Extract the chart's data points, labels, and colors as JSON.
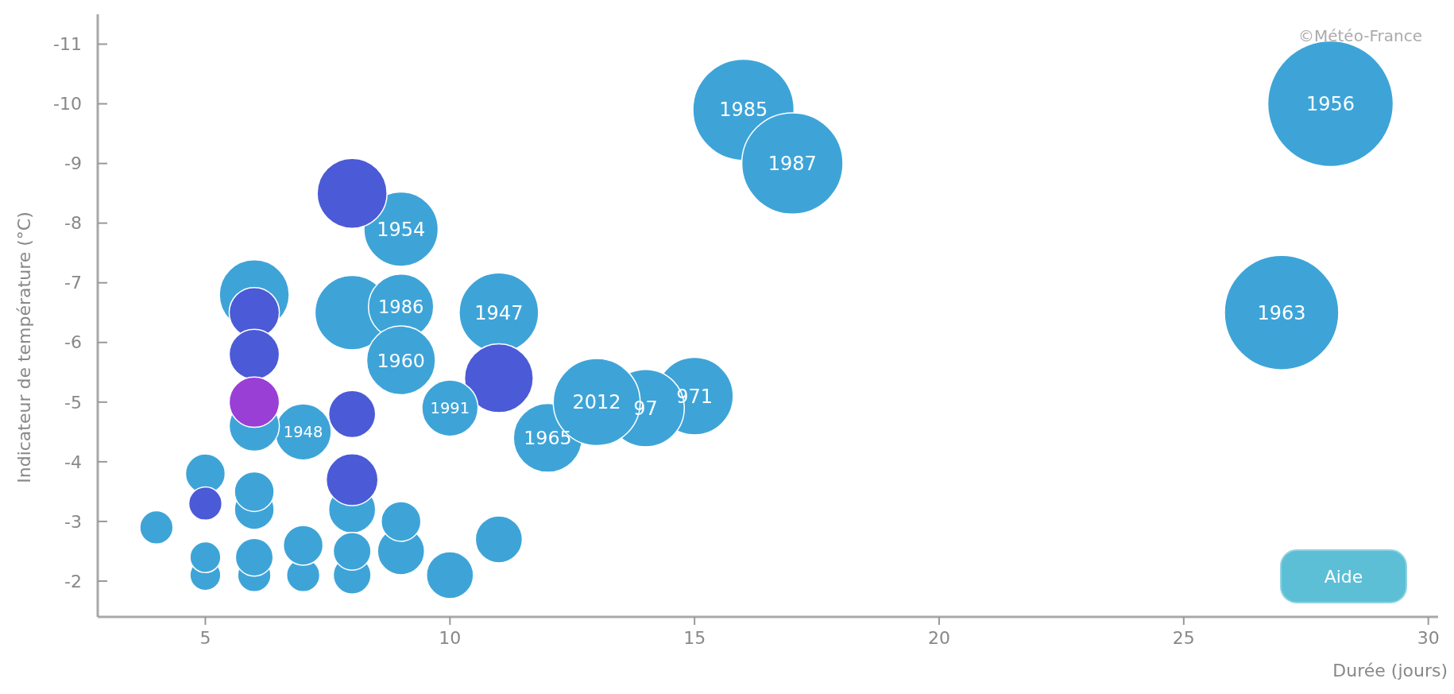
{
  "chart_data": {
    "type": "bubble",
    "xlabel": "Durée (jours)",
    "ylabel": "Indicateur de température (°C)",
    "xlim": [
      2.8,
      30.2
    ],
    "ylim": [
      -1.4,
      -11.5
    ],
    "xticks": [
      5,
      10,
      15,
      20,
      25,
      30
    ],
    "yticks": [
      -11,
      -10,
      -9,
      -8,
      -7,
      -6,
      -5,
      -4,
      -3,
      -2
    ],
    "grid": false,
    "annotations": [
      "©Météo-France",
      "Aide"
    ],
    "series": [
      {
        "name": "1956",
        "color": "#3ea4d8",
        "x": [
          28
        ],
        "values": [
          -10
        ],
        "sizes": [
          1
        ]
      },
      {
        "name": "1985",
        "color": "#3ea4d8",
        "x": [
          16
        ],
        "values": [
          -9.9
        ],
        "sizes": [
          0.65
        ]
      },
      {
        "name": "1987",
        "color": "#3ea4d8",
        "x": [
          17
        ],
        "values": [
          -9
        ],
        "sizes": [
          0.65
        ]
      },
      {
        "name": "1963",
        "color": "#3ea4d8",
        "x": [
          27
        ],
        "values": [
          -6.5
        ],
        "sizes": [
          0.83
        ]
      },
      {
        "name": "971",
        "color": "#3ea4d8",
        "x": [
          15
        ],
        "values": [
          -5.1
        ],
        "sizes": [
          0.38
        ]
      },
      {
        "name": "97",
        "color": "#3ea4d8",
        "x": [
          14
        ],
        "values": [
          -4.9
        ],
        "sizes": [
          0.38
        ]
      },
      {
        "name": "1965",
        "color": "#3ea4d8",
        "x": [
          12
        ],
        "values": [
          -4.4
        ],
        "sizes": [
          0.3
        ]
      },
      {
        "name": "2012",
        "color": "#3ea4d8",
        "x": [
          13
        ],
        "values": [
          -5
        ],
        "sizes": [
          0.48
        ]
      },
      {
        "name": "1947",
        "color": "#3ea4d8",
        "x": [
          11
        ],
        "values": [
          -6.5
        ],
        "sizes": [
          0.4
        ]
      },
      {
        "color": "#4b5ad6",
        "x": [
          11
        ],
        "values": [
          -5.4
        ],
        "sizes": [
          0.3
        ]
      },
      {
        "name": "1991",
        "color": "#3ea4d8",
        "x": [
          10
        ],
        "values": [
          -4.9
        ],
        "sizes": [
          0.2
        ]
      },
      {
        "name": "1954",
        "color": "#3ea4d8",
        "x": [
          9
        ],
        "values": [
          -7.9
        ],
        "sizes": [
          0.35
        ]
      },
      {
        "color": "#4b5ad6",
        "x": [
          8
        ],
        "values": [
          -8.5
        ],
        "sizes": [
          0.31
        ]
      },
      {
        "color": "#3ea4d8",
        "x": [
          8
        ],
        "values": [
          -6.5
        ],
        "sizes": [
          0.35
        ]
      },
      {
        "name": "1986",
        "color": "#3ea4d8",
        "x": [
          9
        ],
        "values": [
          -6.6
        ],
        "sizes": [
          0.27
        ]
      },
      {
        "name": "1960",
        "color": "#3ea4d8",
        "x": [
          9
        ],
        "values": [
          -5.7
        ],
        "sizes": [
          0.3
        ]
      },
      {
        "name": "1948",
        "color": "#3ea4d8",
        "x": [
          7
        ],
        "values": [
          -4.5
        ],
        "sizes": [
          0.2
        ]
      },
      {
        "color": "#4b5ad6",
        "x": [
          8
        ],
        "values": [
          -4.8
        ],
        "sizes": [
          0.14
        ]
      },
      {
        "color": "#3ea4d8",
        "x": [
          8
        ],
        "values": [
          -3.2
        ],
        "sizes": [
          0.14
        ]
      },
      {
        "color": "#4b5ad6",
        "x": [
          8
        ],
        "values": [
          -3.7
        ],
        "sizes": [
          0.17
        ]
      },
      {
        "color": "#3ea4d8",
        "x": [
          6
        ],
        "values": [
          -6.8
        ],
        "sizes": [
          0.31
        ]
      },
      {
        "color": "#4b5ad6",
        "x": [
          6
        ],
        "values": [
          -6.5
        ],
        "sizes": [
          0.16
        ]
      },
      {
        "color": "#4b5ad6",
        "x": [
          6
        ],
        "values": [
          -5.8
        ],
        "sizes": [
          0.16
        ]
      },
      {
        "color": "#3ea4d8",
        "x": [
          6
        ],
        "values": [
          -4.6
        ],
        "sizes": [
          0.16
        ]
      },
      {
        "color": "#9a3fd6",
        "x": [
          6
        ],
        "values": [
          -5
        ],
        "sizes": [
          0.16
        ]
      },
      {
        "color": "#3ea4d8",
        "x": [
          5
        ],
        "values": [
          -3.8
        ],
        "sizes": [
          0.1
        ]
      },
      {
        "color": "#4b5ad6",
        "x": [
          5
        ],
        "values": [
          -3.3
        ],
        "sizes": [
          0.07
        ]
      },
      {
        "color": "#3ea4d8",
        "x": [
          6
        ],
        "values": [
          -3.2
        ],
        "sizes": [
          0.1
        ]
      },
      {
        "color": "#3ea4d8",
        "x": [
          6
        ],
        "values": [
          -3.5
        ],
        "sizes": [
          0.1
        ]
      },
      {
        "color": "#3ea4d8",
        "x": [
          4
        ],
        "values": [
          -2.9
        ],
        "sizes": [
          0.07
        ]
      },
      {
        "color": "#3ea4d8",
        "x": [
          5
        ],
        "values": [
          -2.1
        ],
        "sizes": [
          0.06
        ]
      },
      {
        "color": "#3ea4d8",
        "x": [
          5
        ],
        "values": [
          -2.4
        ],
        "sizes": [
          0.06
        ]
      },
      {
        "color": "#3ea4d8",
        "x": [
          6
        ],
        "values": [
          -2.1
        ],
        "sizes": [
          0.07
        ]
      },
      {
        "color": "#3ea4d8",
        "x": [
          6
        ],
        "values": [
          -2.4
        ],
        "sizes": [
          0.09
        ]
      },
      {
        "color": "#3ea4d8",
        "x": [
          7
        ],
        "values": [
          -2.1
        ],
        "sizes": [
          0.07
        ]
      },
      {
        "color": "#3ea4d8",
        "x": [
          7
        ],
        "values": [
          -2.6
        ],
        "sizes": [
          0.1
        ]
      },
      {
        "color": "#3ea4d8",
        "x": [
          8
        ],
        "values": [
          -2.1
        ],
        "sizes": [
          0.09
        ]
      },
      {
        "color": "#3ea4d8",
        "x": [
          8
        ],
        "values": [
          -2.5
        ],
        "sizes": [
          0.09
        ]
      },
      {
        "color": "#3ea4d8",
        "x": [
          9
        ],
        "values": [
          -2.5
        ],
        "sizes": [
          0.14
        ]
      },
      {
        "color": "#3ea4d8",
        "x": [
          9
        ],
        "values": [
          -3
        ],
        "sizes": [
          0.1
        ]
      },
      {
        "color": "#3ea4d8",
        "x": [
          10
        ],
        "values": [
          -2.1
        ],
        "sizes": [
          0.14
        ]
      },
      {
        "color": "#3ea4d8",
        "x": [
          11
        ],
        "values": [
          -2.7
        ],
        "sizes": [
          0.14
        ]
      }
    ]
  }
}
